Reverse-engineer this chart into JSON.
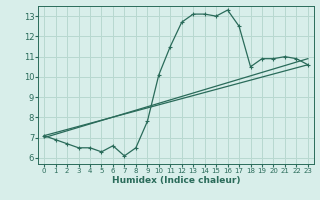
{
  "xlabel": "Humidex (Indice chaleur)",
  "bg_color": "#d8eeea",
  "grid_color": "#b8d8d0",
  "line_color": "#2a6b5a",
  "xlim": [
    -0.5,
    23.5
  ],
  "ylim": [
    5.7,
    13.5
  ],
  "xticks": [
    0,
    1,
    2,
    3,
    4,
    5,
    6,
    7,
    8,
    9,
    10,
    11,
    12,
    13,
    14,
    15,
    16,
    17,
    18,
    19,
    20,
    21,
    22,
    23
  ],
  "yticks": [
    6,
    7,
    8,
    9,
    10,
    11,
    12,
    13
  ],
  "line1_x": [
    0,
    1,
    2,
    3,
    4,
    5,
    6,
    7,
    8,
    9,
    10,
    11,
    12,
    13,
    14,
    15,
    16,
    17,
    18,
    19,
    20,
    21,
    22,
    23
  ],
  "line1_y": [
    7.1,
    6.9,
    6.7,
    6.5,
    6.5,
    6.3,
    6.6,
    6.1,
    6.5,
    7.8,
    10.1,
    11.5,
    12.7,
    13.1,
    13.1,
    13.0,
    13.3,
    12.5,
    10.5,
    10.9,
    10.9,
    11.0,
    10.9,
    10.6
  ],
  "line2_x": [
    0,
    23
  ],
  "line2_y": [
    7.1,
    10.6
  ],
  "line3_x": [
    0,
    23
  ],
  "line3_y": [
    7.0,
    10.9
  ]
}
